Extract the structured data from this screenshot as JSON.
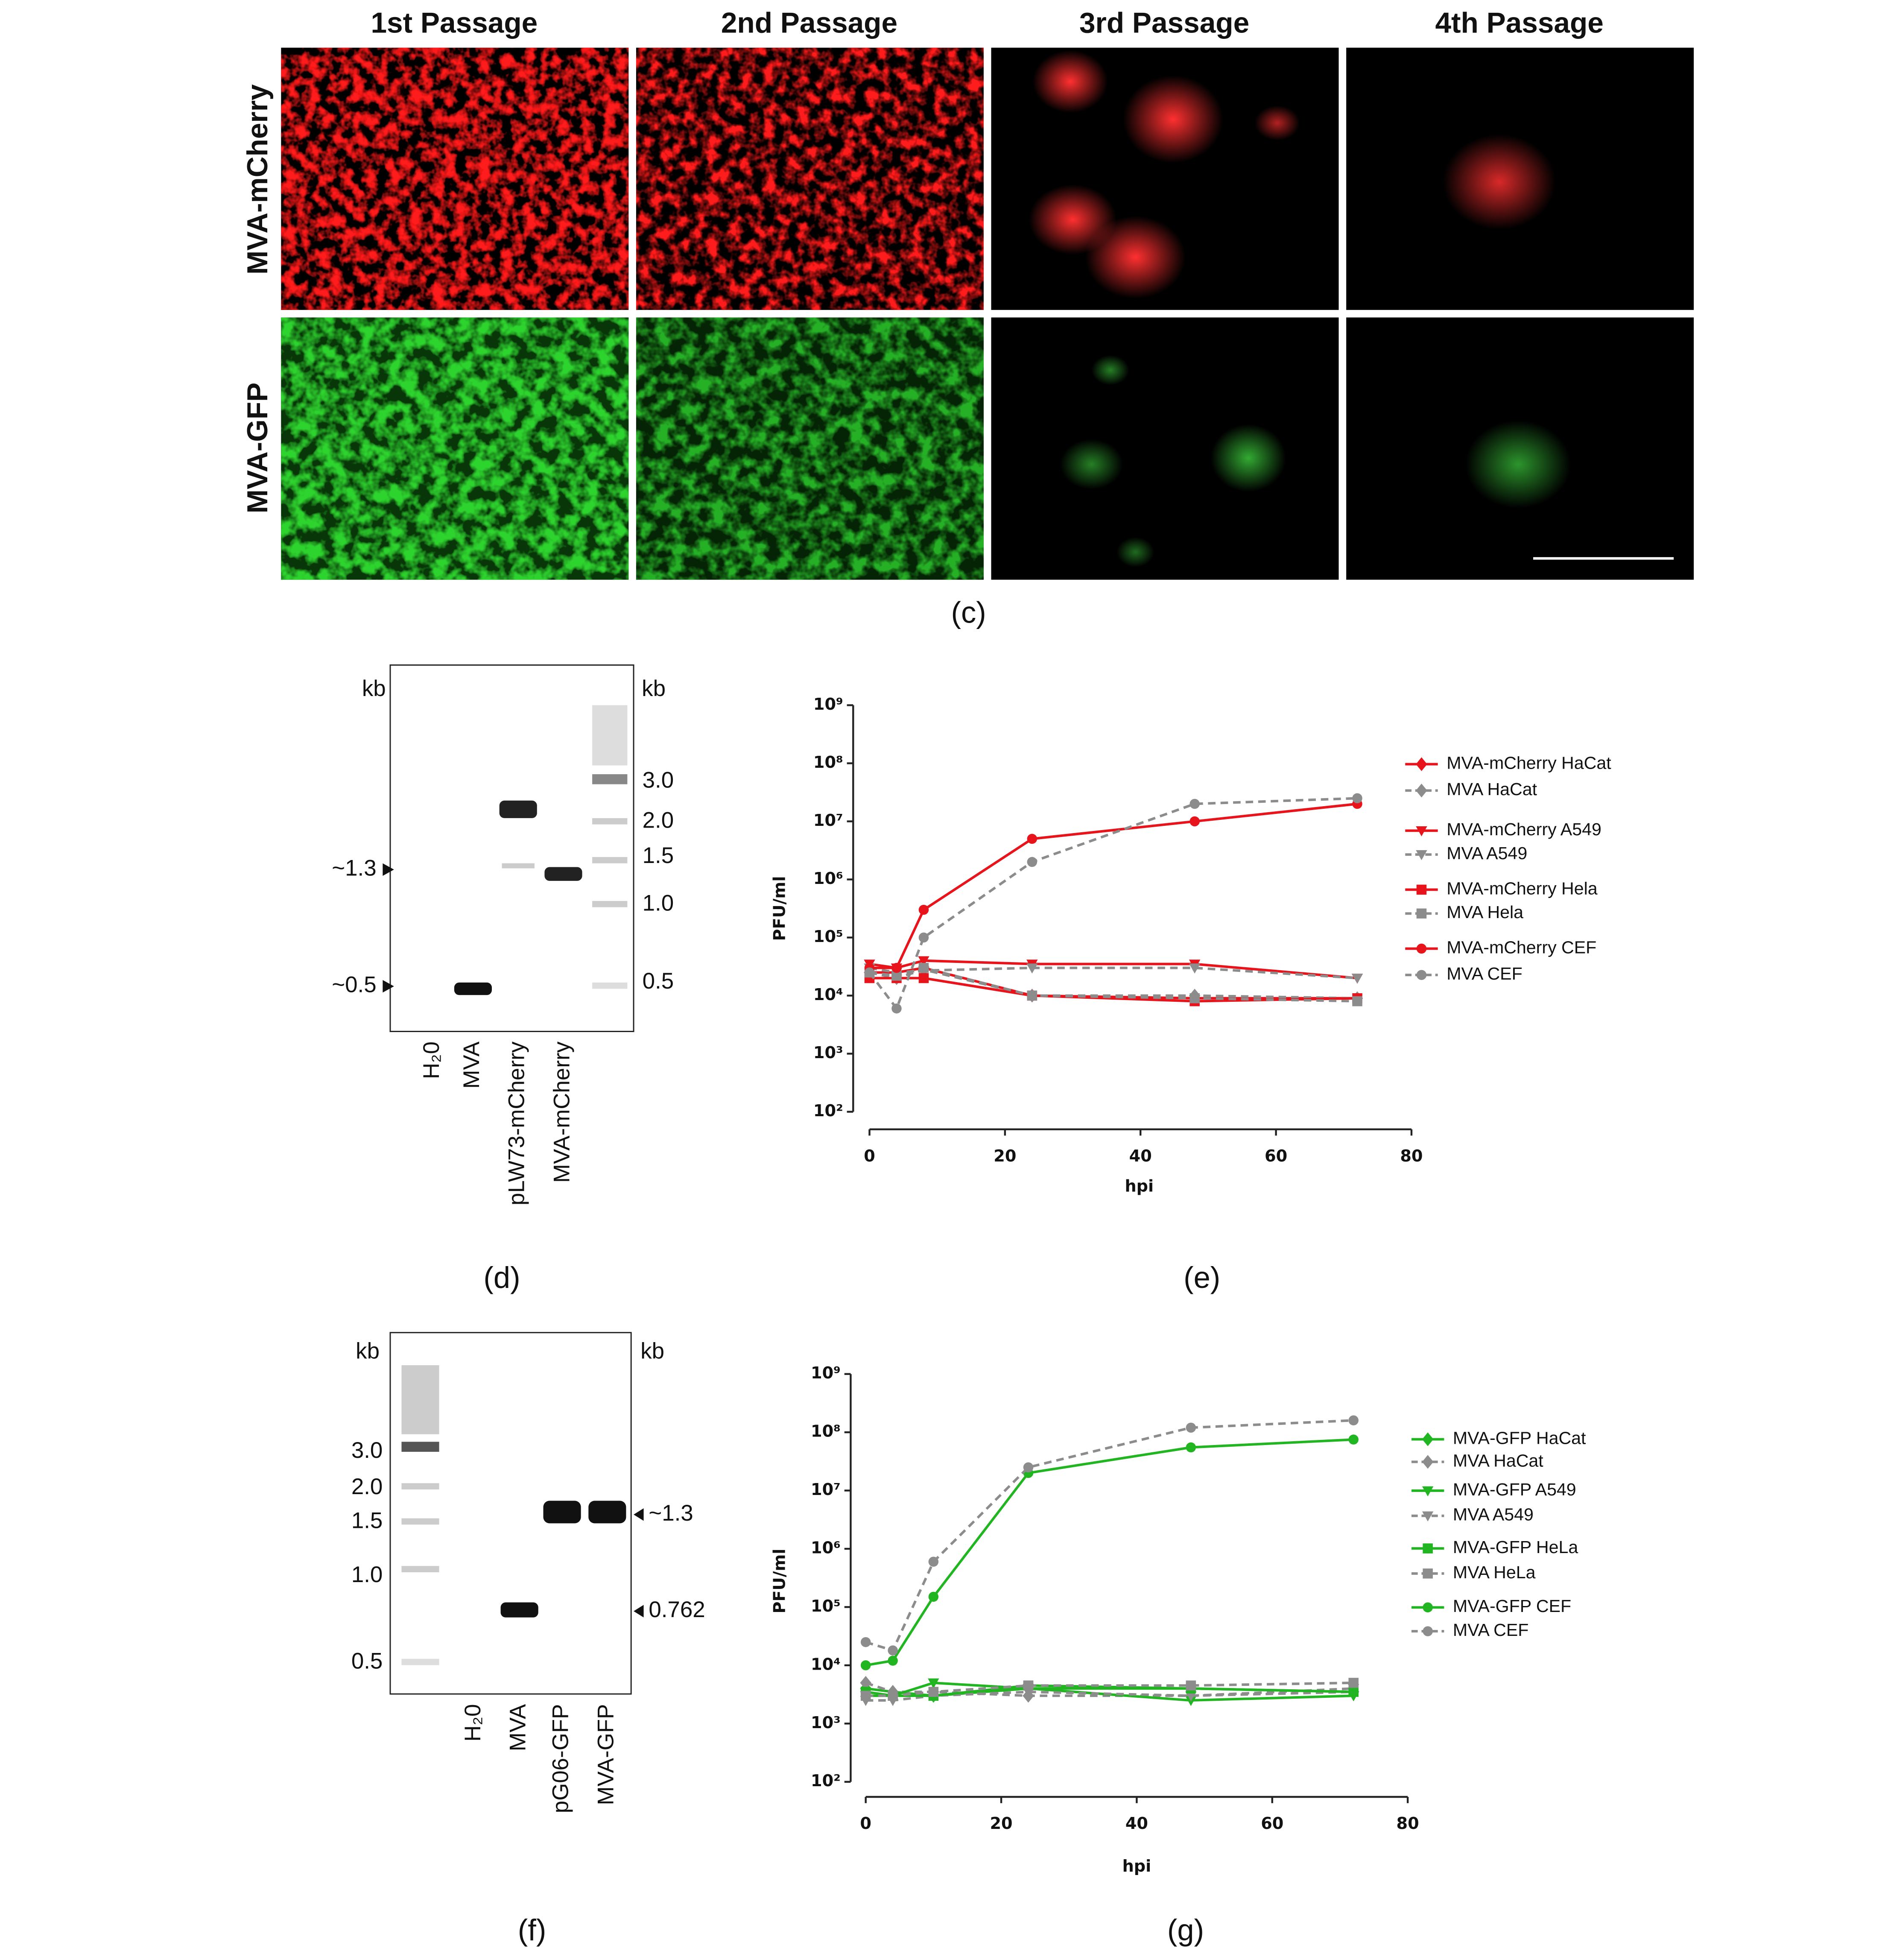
{
  "panel_c": {
    "column_headers": [
      "1st Passage",
      "2nd Passage",
      "3rd Passage",
      "4th Passage"
    ],
    "row_labels": [
      "MVA-mCherry",
      "MVA-GFP"
    ],
    "label": "(c)"
  },
  "gel_d": {
    "kb_left": "kb",
    "kb_right": "kb",
    "ladder_labels": [
      "3.0",
      "2.0",
      "1.5",
      "1.0",
      "0.5"
    ],
    "band_markers": [
      "~1.3",
      "~0.5"
    ],
    "lanes": [
      "H₂0",
      "MVA",
      "pLW73-mCherry",
      "MVA-mCherry"
    ],
    "label": "(d)"
  },
  "gel_f": {
    "kb_left": "kb",
    "kb_right": "kb",
    "ladder_labels": [
      "3.0",
      "2.0",
      "1.5",
      "1.0",
      "0.5"
    ],
    "band_markers": [
      "~1.3",
      "0.762"
    ],
    "lanes": [
      "H₂0",
      "MVA",
      "pG06-GFP",
      "MVA-GFP"
    ],
    "label": "(f)"
  },
  "chart_data": [
    {
      "type": "line",
      "panel_label": "(e)",
      "x_label": "hpi",
      "y_label": "PFU/ml",
      "log_y": true,
      "x": [
        0,
        4,
        8,
        24,
        48,
        72
      ],
      "xlim": [
        0,
        80
      ],
      "xticks": [
        0,
        20,
        40,
        60,
        80
      ],
      "ylim": [
        100,
        1000000000
      ],
      "yticks": [
        {
          "value": 100,
          "label": "10²"
        },
        {
          "value": 1000,
          "label": "10³"
        },
        {
          "value": 10000,
          "label": "10⁴"
        },
        {
          "value": 100000,
          "label": "10⁵"
        },
        {
          "value": 1000000,
          "label": "10⁶"
        },
        {
          "value": 10000000,
          "label": "10⁷"
        },
        {
          "value": 100000000,
          "label": "10⁸"
        },
        {
          "value": 1000000000,
          "label": "10⁹"
        }
      ],
      "series": [
        {
          "name": "MVA-mCherry HaCat",
          "color": "#e8141c",
          "marker": "diamond",
          "dashed": false,
          "values": [
            25000,
            25000,
            30000,
            10000,
            9000,
            9000
          ]
        },
        {
          "name": "MVA HaCat",
          "color": "#8c8c8c",
          "marker": "diamond",
          "dashed": true,
          "values": [
            25000,
            20000,
            28000,
            10000,
            10000,
            9000
          ]
        },
        {
          "name": "MVA-mCherry A549",
          "color": "#e8141c",
          "marker": "triangle",
          "dashed": false,
          "values": [
            35000,
            30000,
            40000,
            35000,
            35000,
            20000
          ]
        },
        {
          "name": "MVA A549",
          "color": "#8c8c8c",
          "marker": "triangle",
          "dashed": true,
          "values": [
            30000,
            25000,
            27000,
            30000,
            30000,
            20000
          ]
        },
        {
          "name": "MVA-mCherry Hela",
          "color": "#e8141c",
          "marker": "square",
          "dashed": false,
          "values": [
            20000,
            20000,
            20000,
            10000,
            8000,
            9000
          ]
        },
        {
          "name": "MVA Hela",
          "color": "#8c8c8c",
          "marker": "square",
          "dashed": true,
          "values": [
            25000,
            22000,
            30000,
            10000,
            9000,
            8000
          ]
        },
        {
          "name": "MVA-mCherry CEF",
          "color": "#e8141c",
          "marker": "circle",
          "dashed": false,
          "values": [
            30000,
            30000,
            300000,
            5000000,
            10000000,
            20000000
          ]
        },
        {
          "name": "MVA CEF",
          "color": "#8c8c8c",
          "marker": "circle",
          "dashed": true,
          "values": [
            25000,
            6000,
            100000,
            2000000,
            20000000,
            25000000
          ]
        }
      ]
    },
    {
      "type": "line",
      "panel_label": "(g)",
      "x_label": "hpi",
      "y_label": "PFU/ml",
      "log_y": true,
      "x": [
        0,
        4,
        10,
        24,
        48,
        72
      ],
      "xlim": [
        0,
        80
      ],
      "xticks": [
        0,
        20,
        40,
        60,
        80
      ],
      "ylim": [
        100,
        1000000000
      ],
      "yticks": [
        {
          "value": 100,
          "label": "10²"
        },
        {
          "value": 1000,
          "label": "10³"
        },
        {
          "value": 10000,
          "label": "10⁴"
        },
        {
          "value": 100000,
          "label": "10⁵"
        },
        {
          "value": 1000000,
          "label": "10⁶"
        },
        {
          "value": 10000000,
          "label": "10⁷"
        },
        {
          "value": 100000000,
          "label": "10⁸"
        },
        {
          "value": 1000000000,
          "label": "10⁹"
        }
      ],
      "series": [
        {
          "name": "MVA-GFP HaCat",
          "color": "#22b522",
          "marker": "diamond",
          "dashed": false,
          "values": [
            4000,
            3500,
            3000,
            4000,
            4000,
            3500
          ]
        },
        {
          "name": "MVA HaCat",
          "color": "#8c8c8c",
          "marker": "diamond",
          "dashed": true,
          "values": [
            5000,
            3500,
            3500,
            3000,
            3000,
            3500
          ]
        },
        {
          "name": "MVA-GFP A549",
          "color": "#22b522",
          "marker": "triangle",
          "dashed": false,
          "values": [
            3000,
            3000,
            5000,
            4000,
            2500,
            3000
          ]
        },
        {
          "name": "MVA A549",
          "color": "#8c8c8c",
          "marker": "triangle",
          "dashed": true,
          "values": [
            2500,
            2500,
            3000,
            3500,
            3000,
            4000
          ]
        },
        {
          "name": "MVA-GFP HeLa",
          "color": "#22b522",
          "marker": "square",
          "dashed": false,
          "values": [
            3500,
            3000,
            3000,
            4500,
            4000,
            3500
          ]
        },
        {
          "name": "MVA HeLa",
          "color": "#8c8c8c",
          "marker": "square",
          "dashed": true,
          "values": [
            3000,
            3000,
            3500,
            4500,
            4500,
            5000
          ]
        },
        {
          "name": "MVA-GFP CEF",
          "color": "#22b522",
          "marker": "circle",
          "dashed": false,
          "values": [
            10000,
            12000,
            150000,
            20000000,
            55000000,
            75000000
          ]
        },
        {
          "name": "MVA CEF",
          "color": "#8c8c8c",
          "marker": "circle",
          "dashed": true,
          "values": [
            25000,
            18000,
            600000,
            25000000,
            120000000,
            160000000
          ]
        }
      ]
    }
  ]
}
